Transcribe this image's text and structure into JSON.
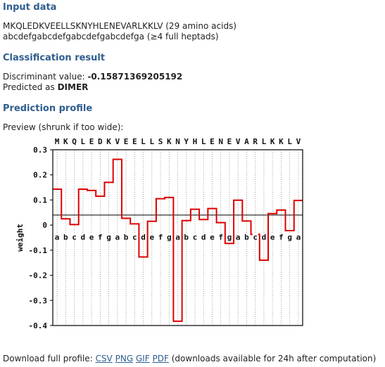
{
  "input": {
    "heading": "Input data",
    "sequence": "MKQLEDKVEELLSKNYHLENEVARLKKLV",
    "sequence_note": "(29 amino acids)",
    "heptad": "abcdefgabcdefgabcdefgabcdefga",
    "heptad_note": "(≥4 full heptads)"
  },
  "classification": {
    "heading": "Classification result",
    "discriminant_label": "Discriminant value:",
    "discriminant_value": "-0.15871369205192",
    "predicted_label": "Predicted as",
    "predicted_value": "DIMER"
  },
  "profile": {
    "heading": "Prediction profile",
    "preview_text": "Preview (shrunk if too wide):"
  },
  "download": {
    "label": "Download full profile:",
    "links": [
      "CSV",
      "PNG",
      "GIF",
      "PDF"
    ],
    "note": "(downloads available for 24h after computation)"
  },
  "chart_data": {
    "type": "line",
    "style": "step",
    "ylabel": "weight",
    "ylim": [
      -0.4,
      0.3
    ],
    "yticks": [
      0.3,
      0.2,
      0.1,
      0,
      -0.1,
      -0.2,
      -0.3,
      -0.4
    ],
    "residues": [
      "M",
      "K",
      "Q",
      "L",
      "E",
      "D",
      "K",
      "V",
      "E",
      "E",
      "L",
      "L",
      "S",
      "K",
      "N",
      "Y",
      "H",
      "L",
      "E",
      "N",
      "E",
      "V",
      "A",
      "R",
      "L",
      "K",
      "K",
      "L",
      "V"
    ],
    "heptad_positions": [
      "a",
      "b",
      "c",
      "d",
      "e",
      "f",
      "g",
      "a",
      "b",
      "c",
      "d",
      "e",
      "f",
      "g",
      "a",
      "b",
      "c",
      "d",
      "e",
      "f",
      "g",
      "a",
      "b",
      "c",
      "d",
      "e",
      "f",
      "g",
      "a"
    ],
    "values": [
      0.143,
      0.025,
      0.002,
      0.143,
      0.138,
      0.115,
      0.17,
      0.262,
      0.027,
      0.005,
      -0.127,
      0.015,
      0.105,
      0.11,
      -0.383,
      0.018,
      0.063,
      0.022,
      0.066,
      0.01,
      -0.073,
      0.099,
      0.016,
      -0.037,
      -0.14,
      0.046,
      0.06,
      -0.022,
      0.098
    ],
    "threshold": 0.04,
    "series_color": "#dd0000",
    "grid": true
  }
}
